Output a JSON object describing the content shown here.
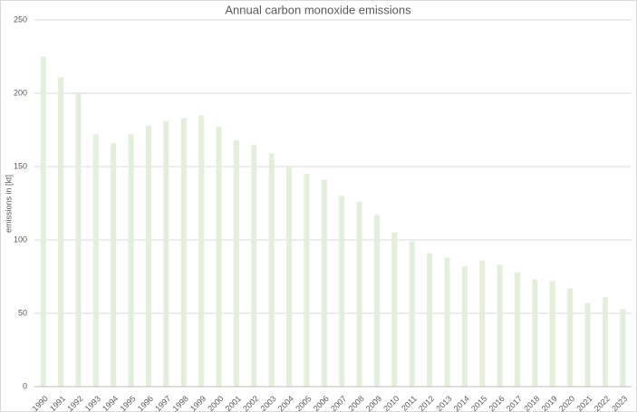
{
  "chart_data": {
    "type": "bar",
    "title": "Annual carbon monoxide emissions",
    "y_label": "emissions in [kt]",
    "categories": [
      "1990",
      "1991",
      "1992",
      "1993",
      "1994",
      "1995",
      "1996",
      "1997",
      "1998",
      "1999",
      "2000",
      "2001",
      "2002",
      "2003",
      "2004",
      "2005",
      "2006",
      "2007",
      "2008",
      "2009",
      "2010",
      "2011",
      "2012",
      "2013",
      "2014",
      "2015",
      "2016",
      "2017",
      "2018",
      "2019",
      "2020",
      "2021",
      "2022",
      "2023"
    ],
    "values": [
      225,
      211,
      200,
      172,
      166,
      172,
      178,
      181,
      183,
      185,
      177,
      168,
      165,
      159,
      150,
      145,
      141,
      130,
      126,
      117,
      105,
      99,
      91,
      88,
      82,
      86,
      83,
      78,
      73,
      72,
      67,
      57,
      61,
      53
    ],
    "color": "#e2efda",
    "ylim": [
      0,
      250
    ],
    "yticks": [
      0,
      50,
      100,
      150,
      200,
      250
    ],
    "grid": true
  }
}
